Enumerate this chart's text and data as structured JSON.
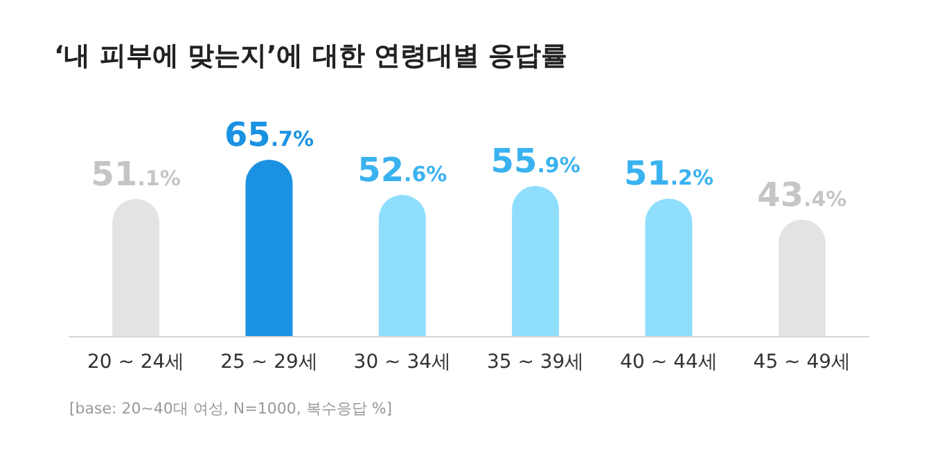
{
  "chart_data": {
    "type": "bar",
    "title": "‘내 피부에 맞는지’에 대한 연령대별 응답률",
    "categories": [
      "20 ~ 24세",
      "25 ~ 29세",
      "30 ~ 34세",
      "35 ~ 39세",
      "40 ~ 44세",
      "45 ~ 49세"
    ],
    "values": [
      51.1,
      65.7,
      52.6,
      55.9,
      51.2,
      43.4
    ],
    "colors": [
      "#e3e3e3",
      "#1a92e2",
      "#90defd",
      "#90defd",
      "#90defd",
      "#e3e3e3"
    ],
    "value_labels": [
      "51.1%",
      "65.7%",
      "52.6%",
      "55.9%",
      "51.2%",
      "43.4%"
    ],
    "annotations": [
      "[base: 20~40대 여성, N=1000, 복수응답 %]"
    ]
  }
}
